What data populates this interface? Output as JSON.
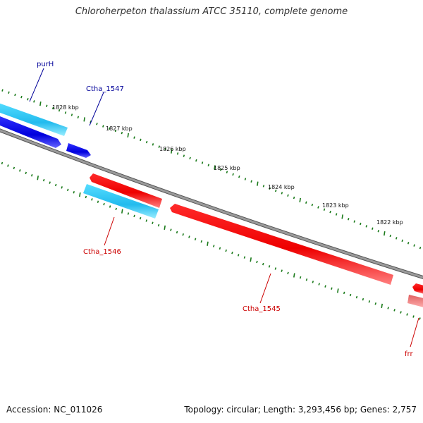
{
  "title": "Chloroherpeton thalassium ATCC 35110, complete genome",
  "footer": {
    "accession": "Accession: NC_011026",
    "summary": "Topology: circular; Length: 3,293,456 bp; Genes: 2,757"
  },
  "ruler_labels": [
    "1828 kbp",
    "1827 kbp",
    "1826 kbp",
    "1825 kbp",
    "1824 kbp",
    "1823 kbp",
    "1822 kbp"
  ],
  "genes": [
    {
      "name": "purH",
      "color": "#000099"
    },
    {
      "name": "Ctha_1547",
      "color": "#000099"
    },
    {
      "name": "Ctha_1546",
      "color": "#cc0000"
    },
    {
      "name": "Ctha_1545",
      "color": "#cc0000"
    },
    {
      "name": "frr",
      "color": "#cc0000"
    }
  ],
  "colors": {
    "backbone": "#808080",
    "tick": "#1a7a1a",
    "gene_forward": "#ff0000",
    "gene_reverse": "#1a1aee",
    "gc_feature": "#33ccff"
  }
}
